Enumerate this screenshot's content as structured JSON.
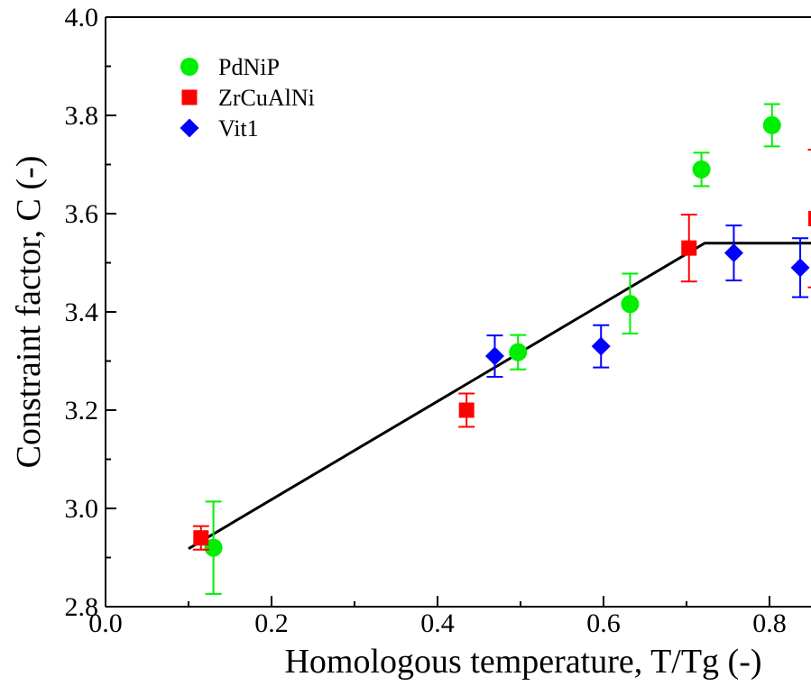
{
  "chart_data": {
    "type": "scatter",
    "title": "",
    "xlabel": "Homologous temperature, T/Tg (-)",
    "ylabel": "Constraint factor, C (-)",
    "xlim": [
      0.0,
      0.85
    ],
    "ylim": [
      2.8,
      4.0
    ],
    "xticks": [
      0.0,
      0.2,
      0.4,
      0.6,
      0.8
    ],
    "xtick_labels": [
      "0.0",
      "0.2",
      "0.4",
      "0.6",
      "0.8"
    ],
    "yticks": [
      2.8,
      3.0,
      3.2,
      3.4,
      3.6,
      3.8,
      4.0
    ],
    "ytick_labels": [
      "2.8",
      "3.0",
      "3.2",
      "3.4",
      "3.6",
      "3.8",
      "4.0"
    ],
    "grid": false,
    "legend_position": "top-left",
    "series": [
      {
        "name": "PdNiP",
        "marker": "circle",
        "color": "#00ee00",
        "points": [
          {
            "x": 0.13,
            "y": 2.92,
            "err_lo": 2.826,
            "err_hi": 3.014
          },
          {
            "x": 0.497,
            "y": 3.318,
            "err_lo": 3.283,
            "err_hi": 3.353
          },
          {
            "x": 0.632,
            "y": 3.416,
            "err_lo": 3.356,
            "err_hi": 3.478
          },
          {
            "x": 0.718,
            "y": 3.69,
            "err_lo": 3.656,
            "err_hi": 3.724
          },
          {
            "x": 0.803,
            "y": 3.78,
            "err_lo": 3.737,
            "err_hi": 3.823
          }
        ]
      },
      {
        "name": "ZrCuAlNi",
        "marker": "square",
        "color": "#ff0000",
        "points": [
          {
            "x": 0.115,
            "y": 2.94,
            "err_lo": 2.916,
            "err_hi": 2.964
          },
          {
            "x": 0.435,
            "y": 3.2,
            "err_lo": 3.166,
            "err_hi": 3.234
          },
          {
            "x": 0.703,
            "y": 3.53,
            "err_lo": 3.462,
            "err_hi": 3.598
          },
          {
            "x": 0.856,
            "y": 3.59,
            "err_lo": 3.45,
            "err_hi": 3.73
          }
        ]
      },
      {
        "name": "Vit1",
        "marker": "diamond",
        "color": "#0000ff",
        "points": [
          {
            "x": 0.469,
            "y": 3.31,
            "err_lo": 3.268,
            "err_hi": 3.352
          },
          {
            "x": 0.597,
            "y": 3.33,
            "err_lo": 3.287,
            "err_hi": 3.373
          },
          {
            "x": 0.757,
            "y": 3.52,
            "err_lo": 3.464,
            "err_hi": 3.576
          },
          {
            "x": 0.837,
            "y": 3.49,
            "err_lo": 3.43,
            "err_hi": 3.55
          }
        ]
      }
    ],
    "fit_line": {
      "color": "#000000",
      "points": [
        [
          0.1,
          2.918
        ],
        [
          0.722,
          3.54
        ],
        [
          0.86,
          3.54
        ]
      ]
    }
  }
}
